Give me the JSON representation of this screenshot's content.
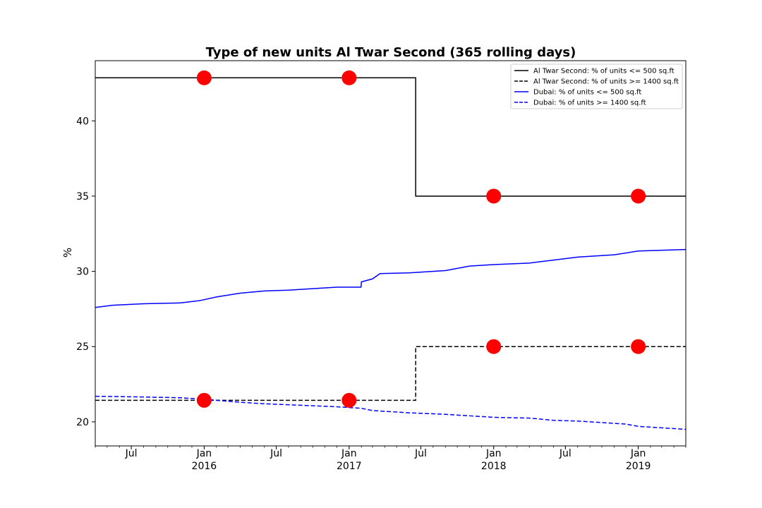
{
  "chart_data": {
    "type": "line",
    "title": "Type of new units Al Twar Second (365 rolling days)",
    "xlabel": "",
    "ylabel": "%",
    "x_range": [
      "2015-04-01",
      "2019-05-01"
    ],
    "ylim": [
      18.4,
      44.0
    ],
    "y_ticks": [
      20,
      25,
      30,
      35,
      40
    ],
    "x_ticks": [
      {
        "date": "2015-07-01",
        "label": "Jul",
        "sublabel": ""
      },
      {
        "date": "2016-01-01",
        "label": "Jan",
        "sublabel": "2016"
      },
      {
        "date": "2016-07-01",
        "label": "Jul",
        "sublabel": ""
      },
      {
        "date": "2017-01-01",
        "label": "Jan",
        "sublabel": "2017"
      },
      {
        "date": "2017-07-01",
        "label": "Jul",
        "sublabel": ""
      },
      {
        "date": "2018-01-01",
        "label": "Jan",
        "sublabel": "2018"
      },
      {
        "date": "2018-07-01",
        "label": "Jul",
        "sublabel": ""
      },
      {
        "date": "2019-01-01",
        "label": "Jan",
        "sublabel": "2019"
      }
    ],
    "grid": false,
    "legend_position": "top-right",
    "series": [
      {
        "name": "Al Twar Second: % of units <= 500 sq.ft",
        "color": "#000000",
        "style": "solid",
        "step": true,
        "points": [
          [
            "2015-04-01",
            42.86
          ],
          [
            "2017-06-18",
            42.86
          ],
          [
            "2017-06-18",
            35.0
          ],
          [
            "2019-05-01",
            35.0
          ]
        ]
      },
      {
        "name": "Al Twar Second: % of units >= 1400 sq.ft",
        "color": "#000000",
        "style": "dashed",
        "step": true,
        "points": [
          [
            "2015-04-01",
            21.43
          ],
          [
            "2017-06-18",
            21.43
          ],
          [
            "2017-06-18",
            25.0
          ],
          [
            "2019-05-01",
            25.0
          ]
        ]
      },
      {
        "name": "Dubai: % of units <= 500 sq.ft",
        "color": "#0000ff",
        "style": "solid",
        "step": false,
        "points": [
          [
            "2015-04-01",
            27.6
          ],
          [
            "2015-05-15",
            27.75
          ],
          [
            "2015-08-01",
            27.85
          ],
          [
            "2015-11-01",
            27.9
          ],
          [
            "2015-12-20",
            28.05
          ],
          [
            "2016-02-01",
            28.3
          ],
          [
            "2016-04-01",
            28.55
          ],
          [
            "2016-06-01",
            28.7
          ],
          [
            "2016-08-01",
            28.75
          ],
          [
            "2016-10-01",
            28.85
          ],
          [
            "2016-12-01",
            28.95
          ],
          [
            "2017-01-01",
            28.95
          ],
          [
            "2017-01-31",
            28.95
          ],
          [
            "2017-02-01",
            29.3
          ],
          [
            "2017-03-01",
            29.5
          ],
          [
            "2017-03-20",
            29.85
          ],
          [
            "2017-06-01",
            29.9
          ],
          [
            "2017-09-01",
            30.05
          ],
          [
            "2017-11-01",
            30.35
          ],
          [
            "2018-01-01",
            30.45
          ],
          [
            "2018-04-01",
            30.55
          ],
          [
            "2018-06-01",
            30.75
          ],
          [
            "2018-08-01",
            30.95
          ],
          [
            "2018-11-01",
            31.1
          ],
          [
            "2019-01-01",
            31.35
          ],
          [
            "2019-05-01",
            31.45
          ]
        ]
      },
      {
        "name": "Dubai: % of units >= 1400 sq.ft",
        "color": "#0000ff",
        "style": "dashed",
        "step": false,
        "points": [
          [
            "2015-04-01",
            21.7
          ],
          [
            "2015-08-01",
            21.65
          ],
          [
            "2015-11-01",
            21.6
          ],
          [
            "2016-01-01",
            21.5
          ],
          [
            "2016-04-01",
            21.3
          ],
          [
            "2016-06-01",
            21.2
          ],
          [
            "2016-09-01",
            21.1
          ],
          [
            "2016-12-01",
            21.0
          ],
          [
            "2017-02-01",
            20.9
          ],
          [
            "2017-03-01",
            20.75
          ],
          [
            "2017-06-01",
            20.6
          ],
          [
            "2017-09-01",
            20.5
          ],
          [
            "2018-01-01",
            20.3
          ],
          [
            "2018-04-01",
            20.25
          ],
          [
            "2018-06-01",
            20.1
          ],
          [
            "2018-08-01",
            20.05
          ],
          [
            "2018-10-01",
            19.95
          ],
          [
            "2018-12-01",
            19.85
          ],
          [
            "2019-01-01",
            19.7
          ],
          [
            "2019-05-01",
            19.5
          ]
        ]
      }
    ],
    "markers": {
      "color": "#ff0000",
      "points": [
        [
          "2016-01-01",
          42.86
        ],
        [
          "2017-01-01",
          42.86
        ],
        [
          "2018-01-01",
          35.0
        ],
        [
          "2019-01-01",
          35.0
        ],
        [
          "2016-01-01",
          21.43
        ],
        [
          "2017-01-01",
          21.43
        ],
        [
          "2018-01-01",
          25.0
        ],
        [
          "2019-01-01",
          25.0
        ]
      ]
    }
  }
}
